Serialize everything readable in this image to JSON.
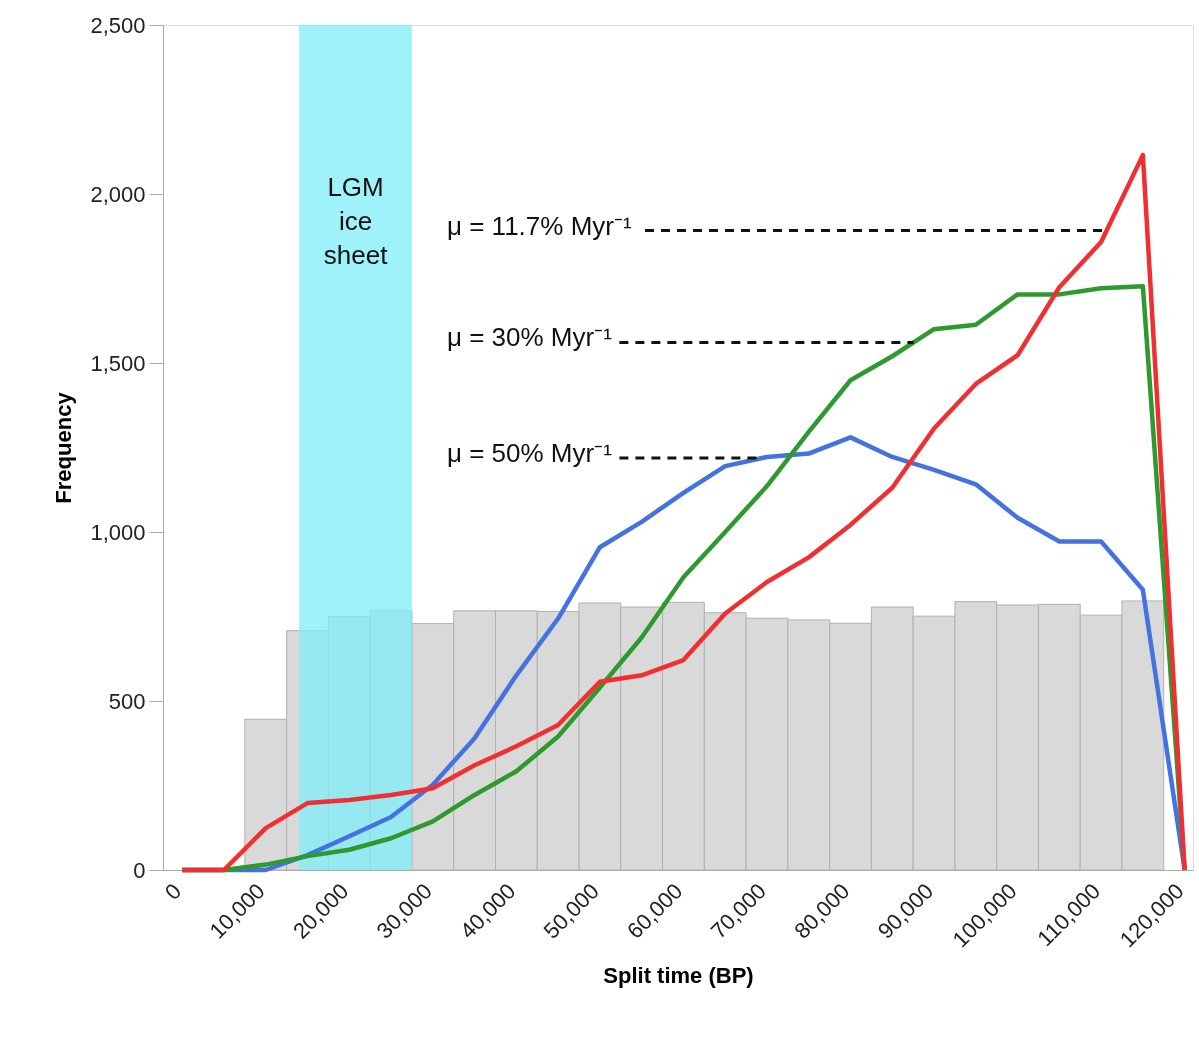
{
  "chart_data": {
    "type": "histogram",
    "xlabel": "Split time (BP)",
    "ylabel": "Frequency",
    "color": "#d9d9d9",
    "bins": [
      7500,
      12500,
      17500,
      22500,
      27500,
      32500,
      37500,
      42500,
      47500,
      52500,
      57500,
      62500,
      67500,
      72500,
      77500,
      82500,
      87500,
      92500,
      97500,
      102500,
      107500,
      112500,
      117500
    ],
    "values": [
      446,
      708,
      750,
      767,
      729,
      767,
      767,
      765,
      790,
      778,
      792,
      761,
      745,
      740,
      730,
      778,
      751,
      794,
      784,
      786,
      754,
      796
    ],
    "series": [
      {
        "type": "line",
        "color": "#4472e0",
        "x": [
          0,
          5000,
          10000,
          15000,
          20000,
          25000,
          30000,
          35000,
          40000,
          45000,
          50000,
          55000,
          60000,
          65000,
          70000,
          75000,
          80000,
          85000,
          90000,
          95000,
          100000,
          105000,
          110000,
          115000,
          120000
        ],
        "values": [
          0,
          0,
          0,
          44,
          100,
          157,
          252,
          390,
          576,
          744,
          955,
          1030,
          1116,
          1195,
          1222,
          1232,
          1280,
          1222,
          1184,
          1141,
          1042,
          972,
          972,
          829,
          0
        ]
      },
      {
        "type": "line",
        "color": "#2e9a2e",
        "x": [
          0,
          5000,
          10000,
          15000,
          20000,
          25000,
          30000,
          35000,
          40000,
          45000,
          50000,
          55000,
          60000,
          65000,
          70000,
          75000,
          80000,
          85000,
          90000,
          95000,
          100000,
          105000,
          110000,
          115000,
          120000
        ],
        "values": [
          0,
          0,
          16,
          41,
          60,
          94,
          144,
          222,
          292,
          395,
          540,
          688,
          866,
          1000,
          1136,
          1296,
          1449,
          1520,
          1600,
          1613,
          1703,
          1703,
          1721,
          1727,
          0
        ]
      },
      {
        "type": "line",
        "color": "#f03030",
        "x": [
          0,
          5000,
          10000,
          15000,
          20000,
          25000,
          30000,
          35000,
          40000,
          45000,
          50000,
          55000,
          60000,
          65000,
          70000,
          75000,
          80000,
          85000,
          90000,
          95000,
          100000,
          105000,
          110000,
          115000,
          120000
        ],
        "values": [
          0,
          0,
          124,
          198,
          207,
          222,
          242,
          310,
          366,
          429,
          557,
          576,
          621,
          759,
          852,
          925,
          1021,
          1131,
          1306,
          1438,
          1523,
          1724,
          1858,
          2115,
          0
        ]
      }
    ],
    "bands": [
      {
        "axis": "x",
        "from": 14000,
        "to": 27500,
        "label": "LGM ice sheet",
        "color": "#80eef8"
      }
    ],
    "annotations": [
      {
        "text": "μ = 11.7% Myr⁻¹",
        "x": 110660,
        "y": 1892
      },
      {
        "text": "μ = 30% Myr⁻¹",
        "x": 87560,
        "y": 1561
      },
      {
        "text": "μ = 50% Myr⁻¹",
        "x": 69440,
        "y": 1219
      }
    ],
    "xlim": [
      -2300,
      121000
    ],
    "ylim": [
      0,
      2500
    ],
    "xticks": [
      0,
      {
        "value": 10000,
        "label": "10,000"
      },
      {
        "value": 20000,
        "label": "20,000"
      },
      {
        "value": 30000,
        "label": "30,000"
      },
      {
        "value": 40000,
        "label": "40,000"
      },
      {
        "value": 50000,
        "label": "50,000"
      },
      {
        "value": 60000,
        "label": "60,000"
      },
      {
        "value": 70000,
        "label": "70,000"
      },
      {
        "value": 80000,
        "label": "80,000"
      },
      {
        "value": 90000,
        "label": "90,000"
      },
      {
        "value": 100000,
        "label": "100,000"
      },
      {
        "value": 110000,
        "label": "110,000"
      },
      {
        "value": 120000,
        "label": "120,000"
      }
    ],
    "yticks": [
      0,
      500,
      {
        "value": 1000,
        "label": "1,000"
      },
      {
        "value": 1500,
        "label": "1,500"
      },
      {
        "value": 2000,
        "label": "2,000"
      },
      {
        "value": 2500,
        "label": "2,500"
      }
    ],
    "grid": false,
    "legend": false,
    "line_style": "solid",
    "marker": "none"
  }
}
